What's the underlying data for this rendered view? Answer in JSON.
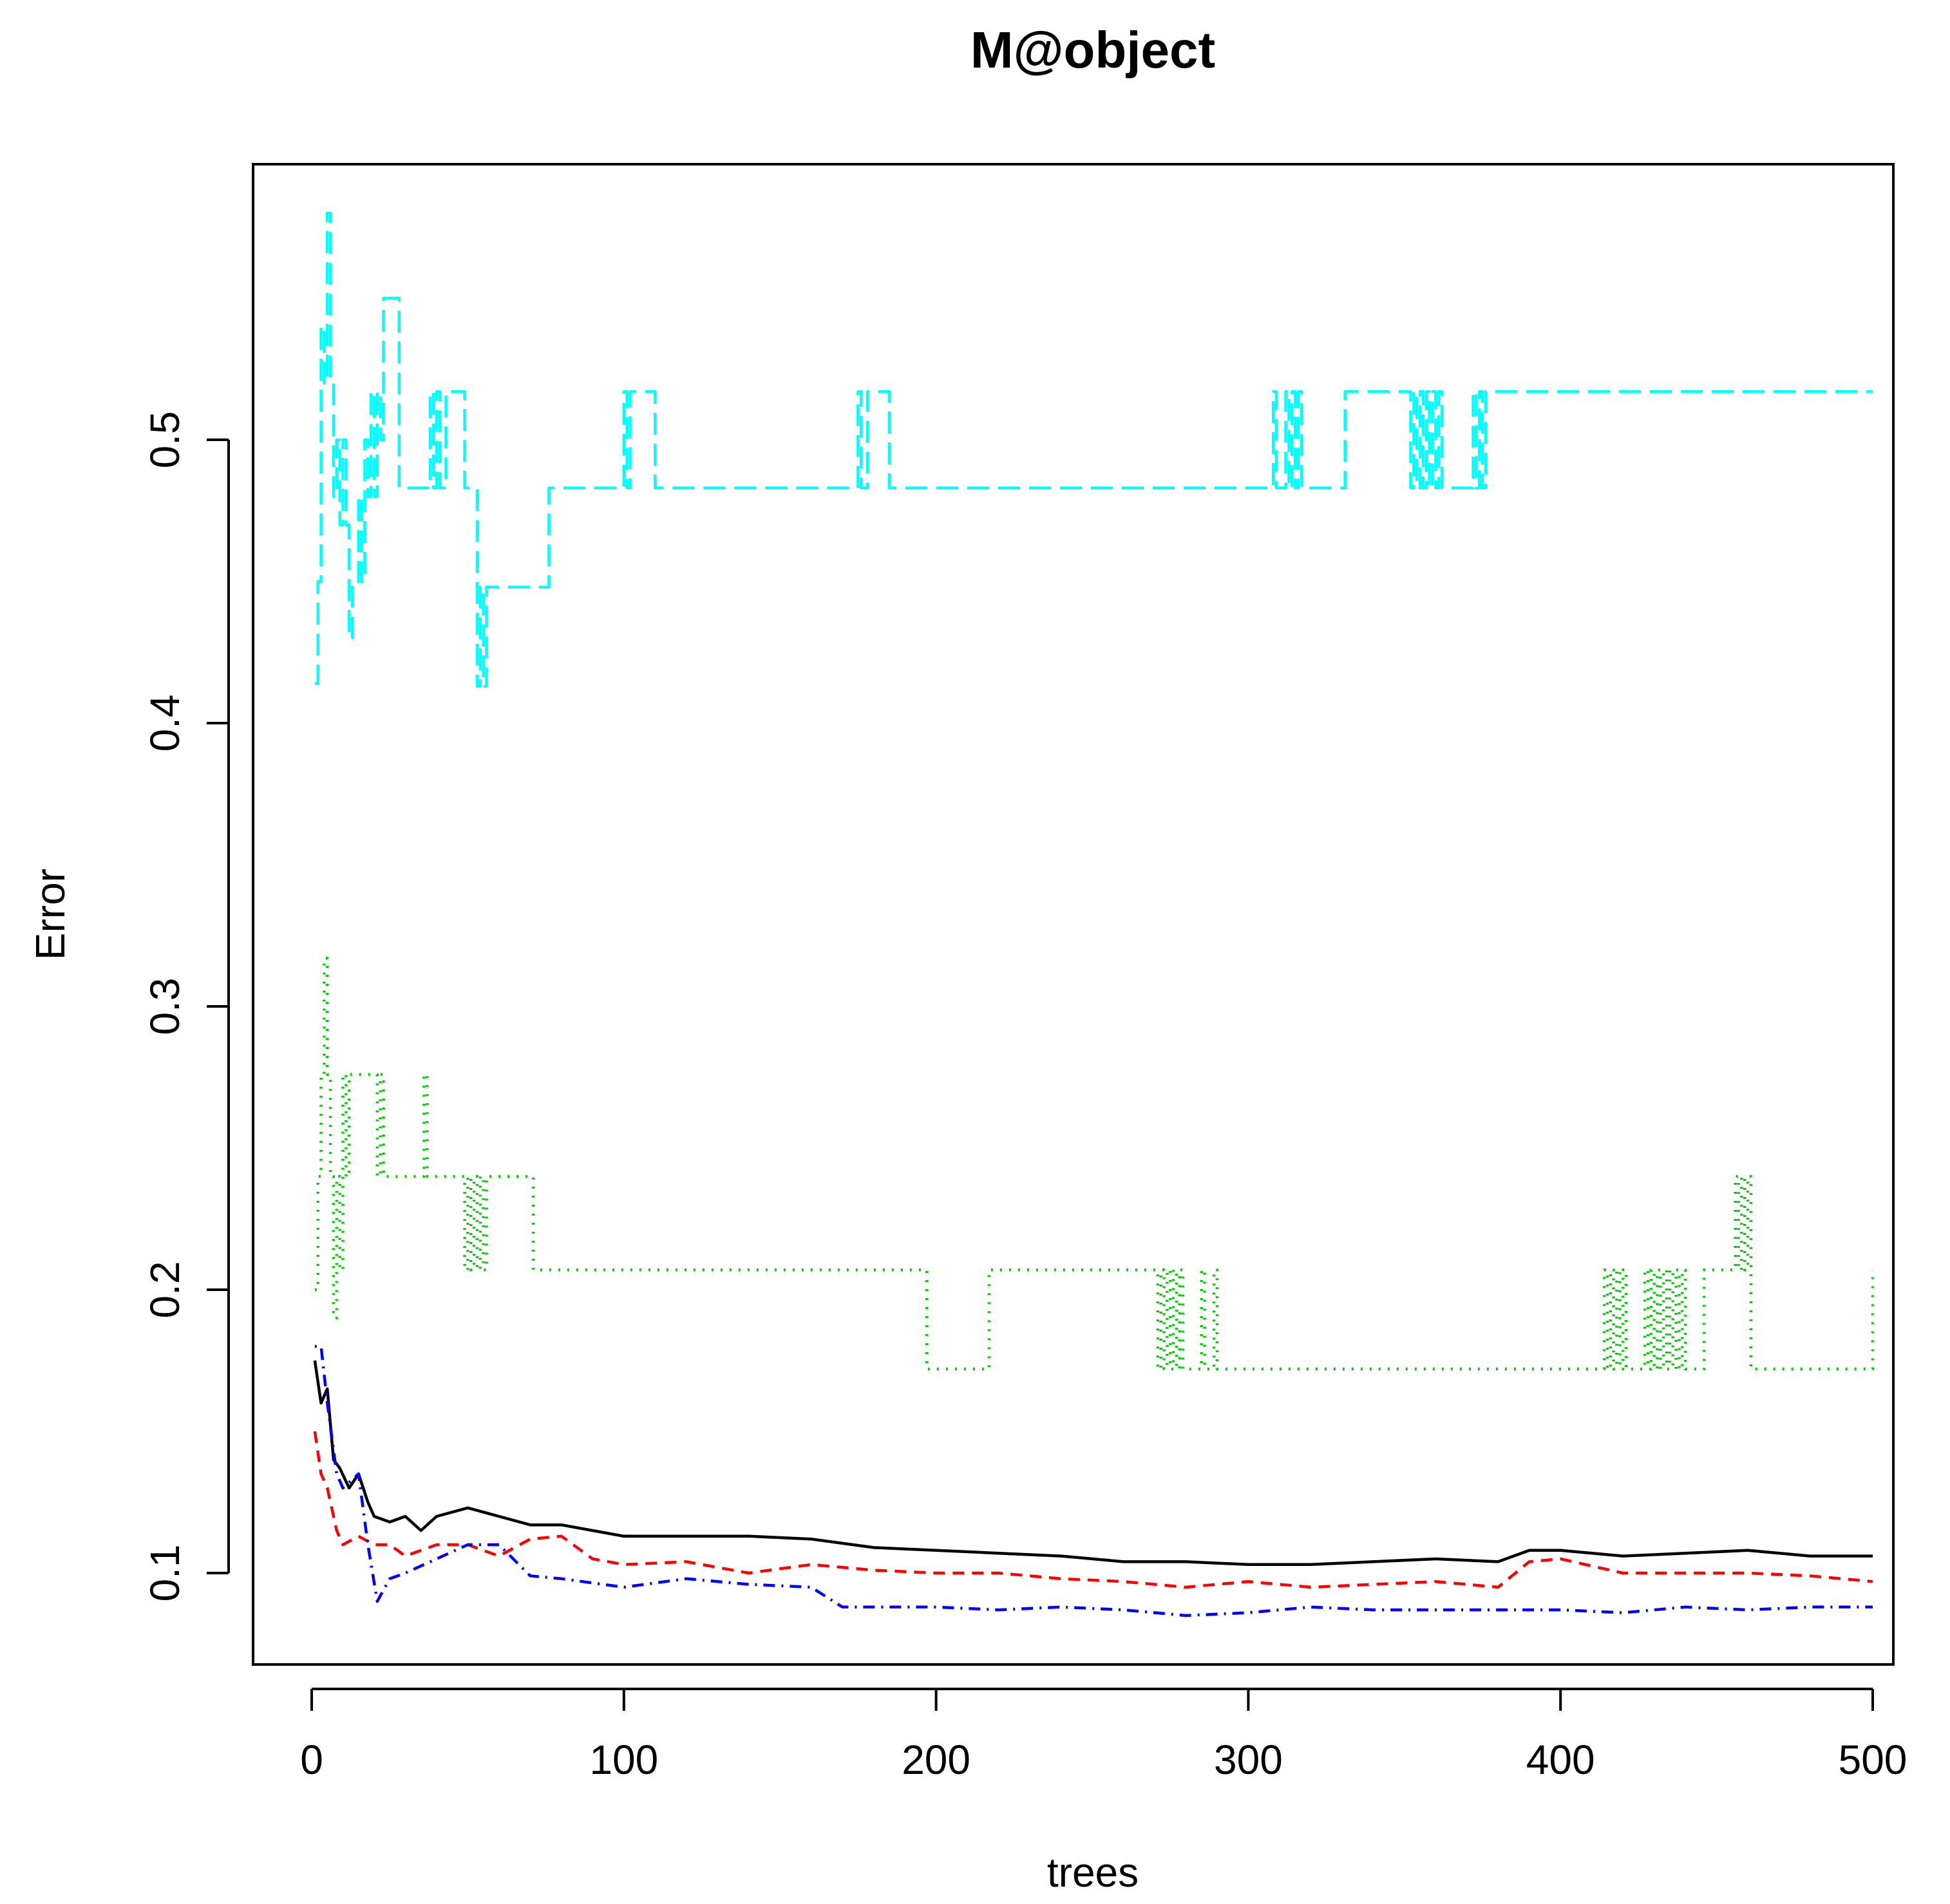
{
  "chart_data": {
    "type": "line",
    "title": "M@object",
    "xlabel": "trees",
    "ylabel": "Error",
    "xlim": [
      0,
      500
    ],
    "ylim": [
      0.08,
      0.58
    ],
    "xticks": [
      0,
      100,
      200,
      300,
      400,
      500
    ],
    "xtick_labels": [
      "0",
      "100",
      "200",
      "300",
      "400",
      "500"
    ],
    "yticks": [
      0.1,
      0.2,
      0.3,
      0.4,
      0.5
    ],
    "ytick_labels": [
      "0.1",
      "0.2",
      "0.3",
      "0.4",
      "0.5"
    ],
    "grid": false,
    "series": [
      {
        "color": "#000000",
        "dash": "solid",
        "x": [
          1,
          3,
          5,
          7,
          9,
          12,
          15,
          18,
          20,
          25,
          30,
          35,
          40,
          50,
          60,
          70,
          80,
          100,
          120,
          140,
          160,
          180,
          200,
          220,
          240,
          260,
          280,
          300,
          320,
          340,
          360,
          380,
          390,
          400,
          420,
          440,
          460,
          480,
          500
        ],
        "y": [
          0.175,
          0.16,
          0.165,
          0.14,
          0.137,
          0.13,
          0.135,
          0.125,
          0.12,
          0.118,
          0.12,
          0.115,
          0.12,
          0.123,
          0.12,
          0.117,
          0.117,
          0.113,
          0.113,
          0.113,
          0.112,
          0.109,
          0.108,
          0.107,
          0.106,
          0.104,
          0.104,
          0.103,
          0.103,
          0.104,
          0.105,
          0.104,
          0.108,
          0.108,
          0.106,
          0.107,
          0.108,
          0.106,
          0.106
        ]
      },
      {
        "color": "#ff0000",
        "dash": "dashed",
        "x": [
          1,
          3,
          5,
          8,
          10,
          15,
          20,
          25,
          30,
          40,
          50,
          60,
          70,
          80,
          90,
          100,
          120,
          140,
          160,
          180,
          200,
          220,
          240,
          260,
          280,
          300,
          320,
          340,
          360,
          380,
          390,
          400,
          420,
          440,
          460,
          480,
          500
        ],
        "y": [
          0.15,
          0.135,
          0.13,
          0.115,
          0.11,
          0.113,
          0.11,
          0.11,
          0.106,
          0.11,
          0.11,
          0.106,
          0.112,
          0.113,
          0.105,
          0.103,
          0.104,
          0.1,
          0.103,
          0.101,
          0.1,
          0.1,
          0.098,
          0.097,
          0.095,
          0.097,
          0.095,
          0.096,
          0.097,
          0.095,
          0.104,
          0.105,
          0.1,
          0.1,
          0.1,
          0.099,
          0.097
        ]
      },
      {
        "color": "#0000ff",
        "dash": "dotdash",
        "x": [
          1,
          3,
          5,
          8,
          10,
          15,
          18,
          21,
          25,
          30,
          40,
          50,
          60,
          70,
          80,
          100,
          120,
          140,
          160,
          170,
          180,
          200,
          220,
          240,
          260,
          280,
          300,
          320,
          340,
          360,
          380,
          400,
          420,
          440,
          460,
          480,
          500
        ],
        "y": [
          0.18,
          0.18,
          0.16,
          0.135,
          0.13,
          0.135,
          0.11,
          0.09,
          0.098,
          0.1,
          0.105,
          0.11,
          0.11,
          0.099,
          0.098,
          0.095,
          0.098,
          0.096,
          0.095,
          0.088,
          0.088,
          0.088,
          0.087,
          0.088,
          0.087,
          0.085,
          0.086,
          0.088,
          0.087,
          0.087,
          0.087,
          0.087,
          0.086,
          0.088,
          0.087,
          0.088,
          0.088
        ]
      },
      {
        "color": "#00cd00",
        "dash": "dotted",
        "step": true,
        "x": [
          1,
          2,
          3,
          4,
          5,
          6,
          7,
          8,
          9,
          10,
          11,
          12,
          13,
          15,
          20,
          21,
          22,
          23,
          35,
          36,
          37,
          38,
          48,
          49,
          50,
          51,
          52,
          53,
          54,
          55,
          56,
          70,
          71,
          196,
          197,
          216,
          217,
          270,
          271,
          272,
          273,
          274,
          275,
          276,
          277,
          278,
          279,
          280,
          284,
          285,
          286,
          289,
          290,
          413,
          414,
          415,
          416,
          417,
          418,
          419,
          420,
          421,
          426,
          427,
          428,
          429,
          430,
          431,
          432,
          433,
          434,
          435,
          436,
          437,
          438,
          439,
          440,
          445,
          446,
          450,
          455,
          456,
          457,
          458,
          459,
          460,
          461,
          500
        ],
        "y": [
          0.2,
          0.24,
          0.276,
          0.317,
          0.276,
          0.24,
          0.19,
          0.24,
          0.207,
          0.276,
          0.24,
          0.276,
          0.276,
          0.276,
          0.276,
          0.24,
          0.276,
          0.24,
          0.24,
          0.276,
          0.24,
          0.24,
          0.24,
          0.207,
          0.24,
          0.207,
          0.24,
          0.207,
          0.24,
          0.207,
          0.24,
          0.24,
          0.207,
          0.207,
          0.172,
          0.172,
          0.207,
          0.207,
          0.172,
          0.207,
          0.172,
          0.207,
          0.172,
          0.207,
          0.172,
          0.207,
          0.172,
          0.172,
          0.172,
          0.207,
          0.172,
          0.207,
          0.172,
          0.172,
          0.207,
          0.172,
          0.207,
          0.172,
          0.207,
          0.172,
          0.207,
          0.172,
          0.172,
          0.207,
          0.172,
          0.207,
          0.172,
          0.207,
          0.172,
          0.207,
          0.172,
          0.207,
          0.172,
          0.207,
          0.172,
          0.207,
          0.172,
          0.172,
          0.207,
          0.207,
          0.207,
          0.24,
          0.207,
          0.24,
          0.207,
          0.24,
          0.172,
          0.207
        ]
      },
      {
        "color": "#00ffff",
        "dash": "longdash",
        "step": true,
        "x": [
          1,
          2,
          3,
          4,
          5,
          6,
          7,
          8,
          9,
          10,
          11,
          12,
          13,
          14,
          15,
          16,
          17,
          18,
          19,
          20,
          21,
          22,
          23,
          24,
          28,
          29,
          38,
          39,
          40,
          41,
          43,
          44,
          49,
          50,
          53,
          54,
          55,
          56,
          57,
          76,
          77,
          100,
          101,
          102,
          103,
          110,
          111,
          175,
          176,
          177,
          178,
          184,
          185,
          202,
          203,
          308,
          309,
          312,
          313,
          314,
          315,
          316,
          317,
          318,
          323,
          331,
          332,
          352,
          353,
          354,
          355,
          356,
          357,
          358,
          359,
          360,
          361,
          362,
          363,
          364,
          365,
          372,
          373,
          374,
          375,
          376,
          377,
          378,
          500
        ],
        "y": [
          0.414,
          0.45,
          0.54,
          0.52,
          0.58,
          0.52,
          0.48,
          0.5,
          0.47,
          0.5,
          0.47,
          0.43,
          0.45,
          0.45,
          0.48,
          0.45,
          0.5,
          0.48,
          0.517,
          0.48,
          0.517,
          0.5,
          0.55,
          0.55,
          0.483,
          0.483,
          0.517,
          0.483,
          0.517,
          0.483,
          0.517,
          0.517,
          0.483,
          0.483,
          0.413,
          0.448,
          0.413,
          0.448,
          0.448,
          0.483,
          0.483,
          0.517,
          0.483,
          0.517,
          0.517,
          0.483,
          0.483,
          0.517,
          0.483,
          0.483,
          0.517,
          0.517,
          0.483,
          0.483,
          0.483,
          0.517,
          0.483,
          0.517,
          0.483,
          0.517,
          0.483,
          0.517,
          0.483,
          0.483,
          0.483,
          0.517,
          0.517,
          0.483,
          0.517,
          0.483,
          0.517,
          0.483,
          0.517,
          0.483,
          0.517,
          0.483,
          0.517,
          0.483,
          0.483,
          0.483,
          0.483,
          0.517,
          0.483,
          0.517,
          0.483,
          0.517,
          0.517,
          0.517,
          0.517
        ]
      }
    ]
  }
}
